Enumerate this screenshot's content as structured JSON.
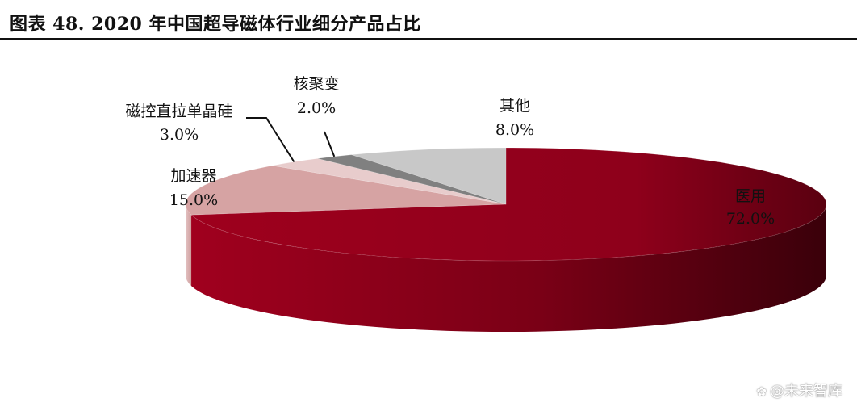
{
  "title": "图表 48. 2020 年中国超导磁体行业细分产品占比",
  "chart_data": {
    "type": "pie",
    "style": "3d",
    "series": [
      {
        "name": "医用",
        "value": 72.0,
        "percent_label": "72.0%",
        "color": "#98001c"
      },
      {
        "name": "加速器",
        "value": 15.0,
        "percent_label": "15.0%",
        "color": "#d6a3a3"
      },
      {
        "name": "磁控直拉单晶硅",
        "value": 3.0,
        "percent_label": "3.0%",
        "color": "#e8cccc"
      },
      {
        "name": "核聚变",
        "value": 2.0,
        "percent_label": "2.0%",
        "color": "#808080"
      },
      {
        "name": "其他",
        "value": 8.0,
        "percent_label": "8.0%",
        "color": "#c8c8c8"
      }
    ]
  },
  "watermark": {
    "icon": "paw-icon",
    "text": "@未来智库"
  }
}
